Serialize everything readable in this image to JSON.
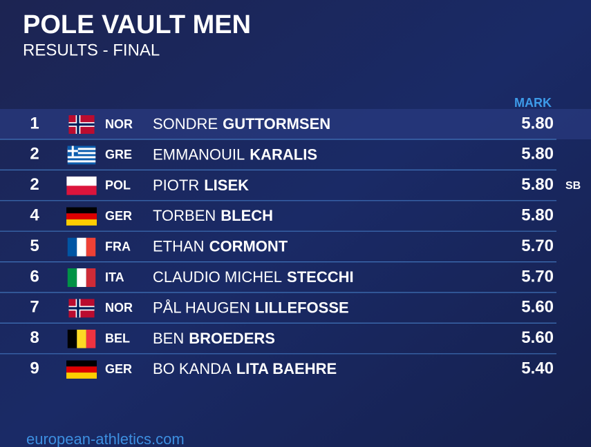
{
  "title": "POLE VAULT MEN",
  "subtitle": "RESULTS - FINAL",
  "column_header": "MARK",
  "rows": [
    {
      "rank": "1",
      "country": "NOR",
      "first_name": "SONDRE",
      "last_name": "GUTTORMSEN",
      "mark": "5.80"
    },
    {
      "rank": "2",
      "country": "GRE",
      "first_name": "EMMANOUIL",
      "last_name": "KARALIS",
      "mark": "5.80"
    },
    {
      "rank": "2",
      "country": "POL",
      "first_name": "PIOTR",
      "last_name": "LISEK",
      "mark": "5.80",
      "note": "SB"
    },
    {
      "rank": "4",
      "country": "GER",
      "first_name": "TORBEN",
      "last_name": "BLECH",
      "mark": "5.80"
    },
    {
      "rank": "5",
      "country": "FRA",
      "first_name": "ETHAN",
      "last_name": "CORMONT",
      "mark": "5.70"
    },
    {
      "rank": "6",
      "country": "ITA",
      "first_name": "CLAUDIO MICHEL",
      "last_name": "STECCHI",
      "mark": "5.70"
    },
    {
      "rank": "7",
      "country": "NOR",
      "first_name": "PÅL HAUGEN",
      "last_name": "LILLEFOSSE",
      "mark": "5.60"
    },
    {
      "rank": "8",
      "country": "BEL",
      "first_name": "BEN",
      "last_name": "BROEDERS",
      "mark": "5.60"
    },
    {
      "rank": "9",
      "country": "GER",
      "first_name": "BO KANDA",
      "last_name": "LITA BAEHRE",
      "mark": "5.40"
    }
  ],
  "footer": "european-athletics.com"
}
